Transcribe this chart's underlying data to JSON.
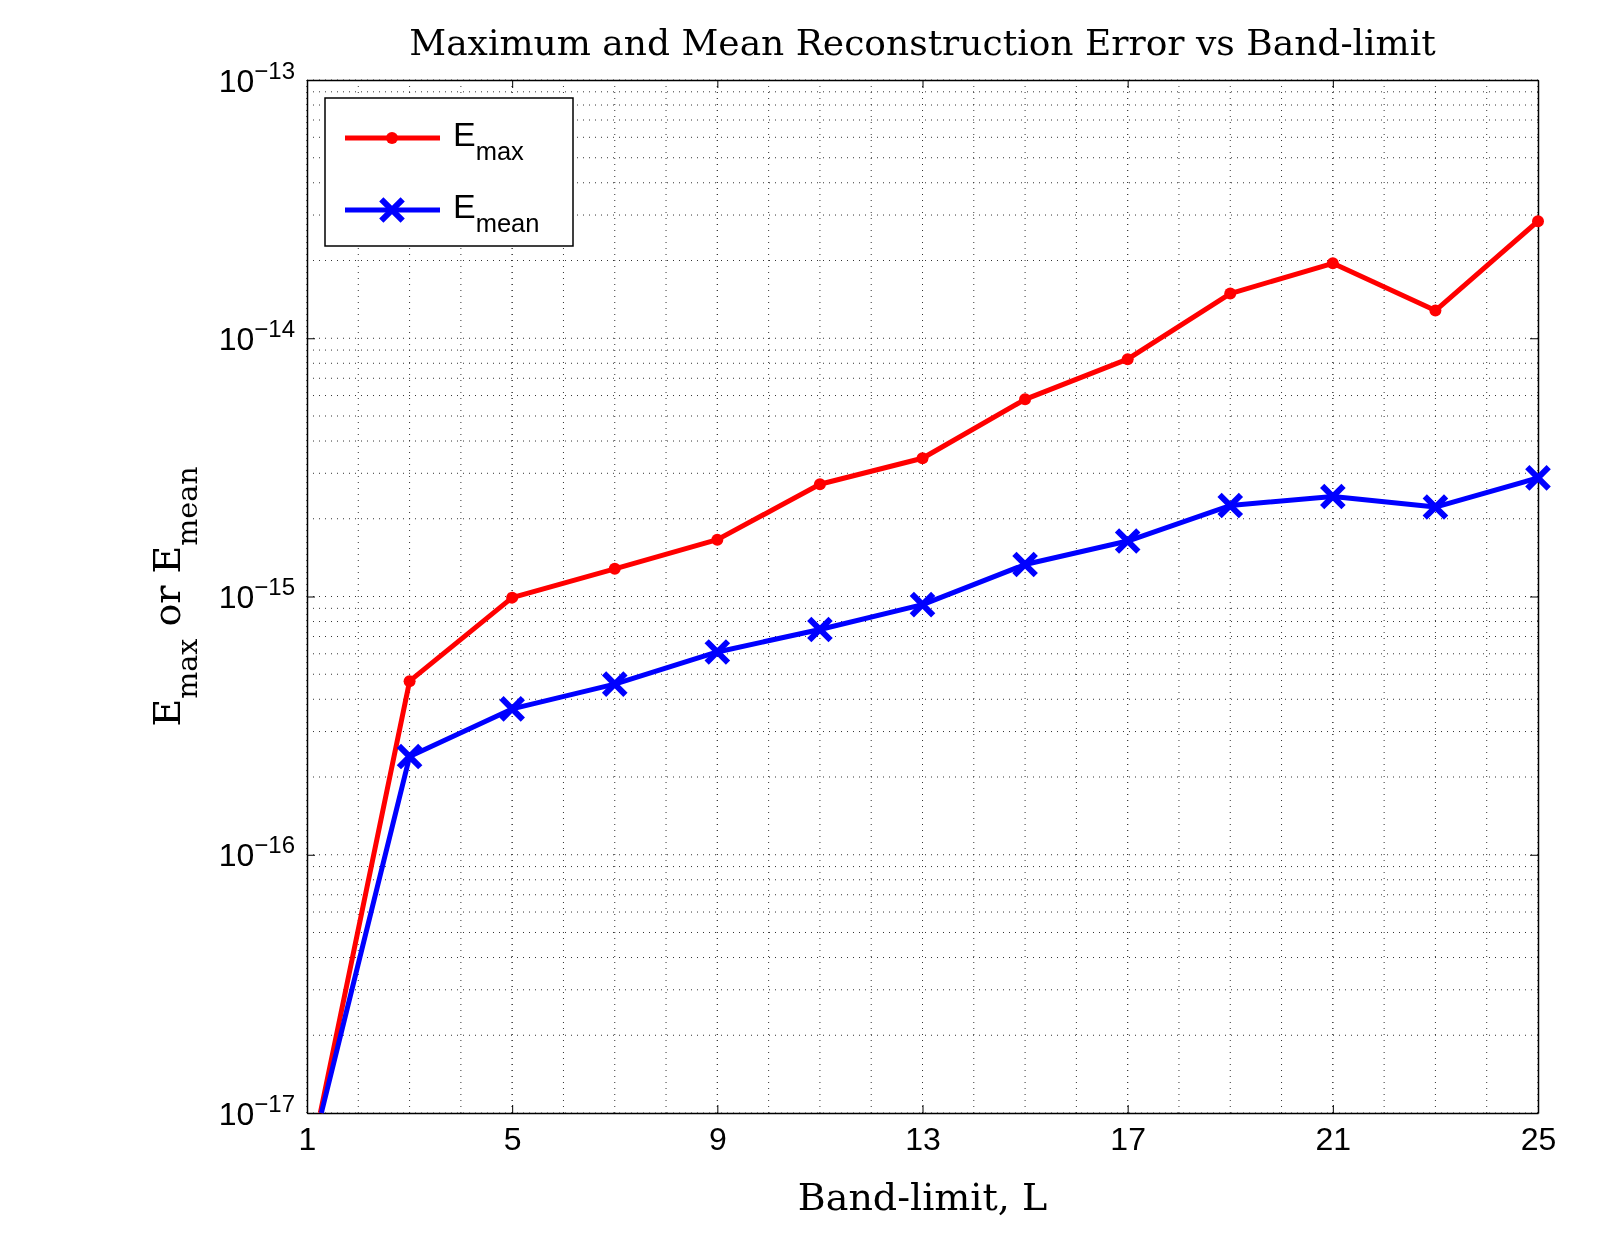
{
  "chart_data": {
    "type": "line",
    "title": "Maximum and Mean Reconstruction Error vs Band-limit",
    "xlabel": "Band-limit, L",
    "ylabel": "E$_{max}$ or E$_{mean}$",
    "log": "y",
    "grid": true,
    "legend": "top left",
    "line_style": "solid",
    "xlim": [
      1,
      25
    ],
    "xticks": [
      1,
      5,
      9,
      13,
      17,
      21,
      25
    ],
    "ylim": [
      1e-17,
      1e-13
    ],
    "yticks": [
      {
        "value": 1e-17,
        "label": "10$^{−17}$"
      },
      {
        "value": 1e-16,
        "label": "10$^{−16}$"
      },
      {
        "value": 1e-15,
        "label": "10$^{−15}$"
      },
      {
        "value": 1e-14,
        "label": "10$^{−14}$"
      },
      {
        "value": 1e-13,
        "label": "10$^{−13}$"
      }
    ],
    "series": [
      {
        "name": "E$_{max}$",
        "color": "#ff0000",
        "marker": "circle",
        "x": [
          1.26,
          3,
          5,
          7,
          9,
          11,
          13,
          15,
          17,
          19,
          21,
          23,
          25
        ],
        "values": [
          1e-17,
          4.7e-16,
          9.9e-16,
          1.28e-15,
          1.66e-15,
          2.72e-15,
          3.43e-15,
          5.8e-15,
          8.3e-15,
          1.49e-14,
          1.95e-14,
          1.28e-14,
          2.84e-14
        ]
      },
      {
        "name": "E$_{mean}$",
        "color": "#0000ff",
        "marker": "cross",
        "x": [
          1.28,
          3,
          5,
          7,
          9,
          11,
          13,
          15,
          17,
          19,
          21,
          23,
          25
        ],
        "values": [
          1e-17,
          2.4e-16,
          3.67e-16,
          4.58e-16,
          6.1e-16,
          7.45e-16,
          9.3e-16,
          1.33e-15,
          1.64e-15,
          2.25e-15,
          2.44e-15,
          2.22e-15,
          2.88e-15
        ]
      }
    ]
  }
}
